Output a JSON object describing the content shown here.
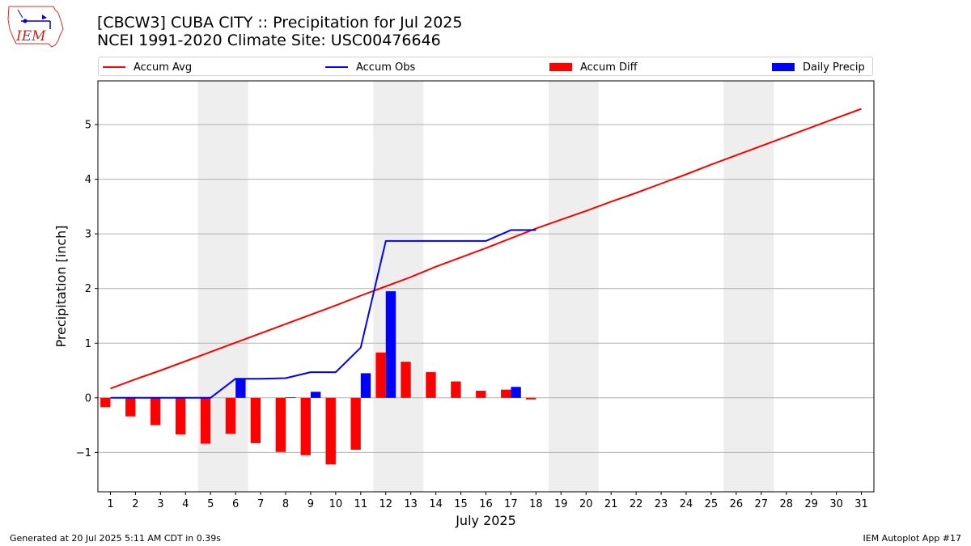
{
  "header": {
    "logo_text": "IEM",
    "title_line1": "[CBCW3] CUBA CITY :: Precipitation for Jul 2025",
    "title_line2": "NCEI 1991-2020 Climate Site: USC00476646"
  },
  "legend": {
    "items": [
      {
        "label": "Accum Avg",
        "kind": "line",
        "color": "#ff0000"
      },
      {
        "label": "Accum Obs",
        "kind": "line",
        "color": "#0000ff"
      },
      {
        "label": "Accum Diff",
        "kind": "bar",
        "color": "#ff0000"
      },
      {
        "label": "Daily Precip",
        "kind": "bar",
        "color": "#0000ff"
      }
    ]
  },
  "footer": {
    "left": "Generated at 20 Jul 2025 5:11 AM CDT in 0.39s",
    "right": "IEM Autoplot App #17"
  },
  "chart_data": {
    "type": "bar",
    "xlabel": "July 2025",
    "ylabel": "Precipitation [inch]",
    "x": [
      1,
      2,
      3,
      4,
      5,
      6,
      7,
      8,
      9,
      10,
      11,
      12,
      13,
      14,
      15,
      16,
      17,
      18,
      19,
      20,
      21,
      22,
      23,
      24,
      25,
      26,
      27,
      28,
      29,
      30,
      31
    ],
    "xlim": [
      0.5,
      31.5
    ],
    "ylim": [
      -1.72,
      5.8
    ],
    "yticks": [
      -1,
      0,
      1,
      2,
      3,
      4,
      5
    ],
    "yticklabels": [
      "−1",
      "0",
      "1",
      "2",
      "3",
      "4",
      "5"
    ],
    "grid": "horizontal",
    "legend_position": "top",
    "weekend_shading": [
      [
        4.5,
        6.5
      ],
      [
        11.5,
        13.5
      ],
      [
        18.5,
        20.5
      ],
      [
        25.5,
        27.5
      ]
    ],
    "series": [
      {
        "name": "Accum Avg",
        "type": "line",
        "color": "#ff0000",
        "x": [
          1,
          2,
          3,
          4,
          5,
          6,
          7,
          8,
          9,
          10,
          11,
          12,
          13,
          14,
          15,
          16,
          17,
          18,
          19,
          20,
          21,
          22,
          23,
          24,
          25,
          26,
          27,
          28,
          29,
          30,
          31
        ],
        "values": [
          0.17,
          0.34,
          0.5,
          0.67,
          0.84,
          1.01,
          1.18,
          1.35,
          1.52,
          1.69,
          1.87,
          2.04,
          2.21,
          2.4,
          2.57,
          2.74,
          2.92,
          3.1,
          3.26,
          3.42,
          3.59,
          3.75,
          3.92,
          4.09,
          4.27,
          4.44,
          4.61,
          4.78,
          4.95,
          5.12,
          5.29
        ]
      },
      {
        "name": "Accum Obs",
        "type": "line",
        "color": "#0000ff",
        "x": [
          1,
          2,
          3,
          4,
          5,
          6,
          7,
          8,
          9,
          10,
          11,
          12,
          13,
          14,
          15,
          16,
          17,
          18
        ],
        "values": [
          0.0,
          0.0,
          0.0,
          0.0,
          0.0,
          0.35,
          0.35,
          0.36,
          0.47,
          0.47,
          0.92,
          2.87,
          2.87,
          2.87,
          2.87,
          2.87,
          3.07,
          3.07
        ]
      },
      {
        "name": "Accum Diff",
        "type": "bar",
        "color": "#ff0000",
        "x": [
          1,
          2,
          3,
          4,
          5,
          6,
          7,
          8,
          9,
          10,
          11,
          12,
          13,
          14,
          15,
          16,
          17,
          18
        ],
        "values": [
          -0.17,
          -0.34,
          -0.5,
          -0.67,
          -0.84,
          -0.66,
          -0.83,
          -0.99,
          -1.05,
          -1.22,
          -0.95,
          0.83,
          0.66,
          0.47,
          0.3,
          0.13,
          0.15,
          -0.03
        ]
      },
      {
        "name": "Daily Precip",
        "type": "bar",
        "color": "#0000ff",
        "x": [
          1,
          2,
          3,
          4,
          5,
          6,
          7,
          8,
          9,
          10,
          11,
          12,
          13,
          14,
          15,
          16,
          17,
          18
        ],
        "values": [
          0,
          0,
          0,
          0,
          0,
          0.35,
          0,
          0.01,
          0.11,
          0,
          0.45,
          1.95,
          0,
          0,
          0,
          0,
          0.2,
          0
        ]
      }
    ]
  }
}
